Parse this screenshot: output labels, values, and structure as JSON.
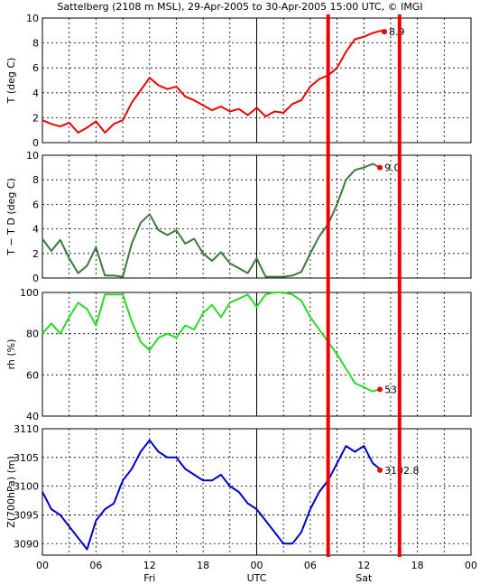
{
  "chart_data": {
    "type": "line",
    "title": "Sattelberg (2108 m MSL), 29-Apr-2005 to 30-Apr-2005 15:00 UTC, © IMGI",
    "x_axis": {
      "range_hours": [
        0,
        48
      ],
      "ticks": [
        {
          "hour": 0,
          "label": "00"
        },
        {
          "hour": 6,
          "label": "06"
        },
        {
          "hour": 12,
          "label": "12"
        },
        {
          "hour": 18,
          "label": "18"
        },
        {
          "hour": 24,
          "label": "00"
        },
        {
          "hour": 30,
          "label": "06"
        },
        {
          "hour": 36,
          "label": "12"
        },
        {
          "hour": 42,
          "label": "18"
        },
        {
          "hour": 48,
          "label": "00"
        }
      ],
      "day_labels": [
        {
          "hour": 12,
          "label": "Fri"
        },
        {
          "hour": 24,
          "label": "UTC"
        },
        {
          "hour": 36,
          "label": "Sat"
        }
      ]
    },
    "markers": [
      {
        "hour": 32,
        "color": "#ee0000"
      },
      {
        "hour": 40,
        "color": "#ee0000"
      }
    ],
    "grid": true,
    "panels": [
      {
        "id": "temperature",
        "ylabel": "T (deg C)",
        "ylim": [
          0,
          10
        ],
        "yticks": [
          {
            "value": 0,
            "label": "0"
          },
          {
            "value": 2,
            "label": "2"
          },
          {
            "value": 4,
            "label": "4"
          },
          {
            "value": 6,
            "label": "6"
          },
          {
            "value": 8,
            "label": "8"
          },
          {
            "value": 10,
            "label": "10"
          }
        ],
        "color": "#ee0000",
        "points": [
          [
            0,
            1.8
          ],
          [
            1,
            1.5
          ],
          [
            2,
            1.3
          ],
          [
            3,
            1.6
          ],
          [
            4,
            0.8
          ],
          [
            5,
            1.2
          ],
          [
            6,
            1.7
          ],
          [
            7,
            0.8
          ],
          [
            8,
            1.5
          ],
          [
            9,
            1.8
          ],
          [
            10,
            3.2
          ],
          [
            11,
            4.2
          ],
          [
            12,
            5.2
          ],
          [
            13,
            4.6
          ],
          [
            14,
            4.3
          ],
          [
            15,
            4.5
          ],
          [
            16,
            3.7
          ],
          [
            17,
            3.4
          ],
          [
            18,
            3.0
          ],
          [
            19,
            2.6
          ],
          [
            20,
            2.9
          ],
          [
            21,
            2.5
          ],
          [
            22,
            2.7
          ],
          [
            23,
            2.2
          ],
          [
            24,
            2.8
          ],
          [
            25,
            2.1
          ],
          [
            26,
            2.5
          ],
          [
            27,
            2.4
          ],
          [
            28,
            3.1
          ],
          [
            29,
            3.4
          ],
          [
            30,
            4.5
          ],
          [
            31,
            5.1
          ],
          [
            32,
            5.4
          ],
          [
            33,
            6.0
          ],
          [
            34,
            7.3
          ],
          [
            35,
            8.3
          ],
          [
            36,
            8.5
          ],
          [
            37,
            8.8
          ],
          [
            38,
            9.0
          ],
          [
            38.3,
            8.9
          ]
        ],
        "end_value": 8.9,
        "end_label": "8.9"
      },
      {
        "id": "dewpoint-depression",
        "ylabel": "T − T D (deg C)",
        "ylim": [
          0,
          10
        ],
        "yticks": [
          {
            "value": 0,
            "label": "0"
          },
          {
            "value": 2,
            "label": "2"
          },
          {
            "value": 4,
            "label": "4"
          },
          {
            "value": 6,
            "label": "6"
          },
          {
            "value": 8,
            "label": "8"
          },
          {
            "value": 10,
            "label": "10"
          }
        ],
        "color": "#3a7a3a",
        "points": [
          [
            0,
            3.2
          ],
          [
            1,
            2.2
          ],
          [
            2,
            3.1
          ],
          [
            3,
            1.6
          ],
          [
            4,
            0.4
          ],
          [
            5,
            1.0
          ],
          [
            6,
            2.5
          ],
          [
            7,
            0.2
          ],
          [
            8,
            0.2
          ],
          [
            9,
            0.1
          ],
          [
            10,
            2.8
          ],
          [
            11,
            4.5
          ],
          [
            12,
            5.2
          ],
          [
            13,
            3.9
          ],
          [
            14,
            3.5
          ],
          [
            15,
            3.9
          ],
          [
            16,
            2.8
          ],
          [
            17,
            3.2
          ],
          [
            18,
            2.0
          ],
          [
            19,
            1.4
          ],
          [
            20,
            2.1
          ],
          [
            21,
            1.2
          ],
          [
            22,
            0.8
          ],
          [
            23,
            0.4
          ],
          [
            24,
            1.6
          ],
          [
            25,
            0.1
          ],
          [
            26,
            0.1
          ],
          [
            27,
            0.1
          ],
          [
            28,
            0.2
          ],
          [
            29,
            0.5
          ],
          [
            30,
            2.0
          ],
          [
            31,
            3.4
          ],
          [
            32,
            4.4
          ],
          [
            33,
            6.0
          ],
          [
            34,
            8.0
          ],
          [
            35,
            8.8
          ],
          [
            36,
            9.0
          ],
          [
            37,
            9.3
          ],
          [
            37.8,
            9.0
          ]
        ],
        "end_value": 9.0,
        "end_label": "9.0"
      },
      {
        "id": "relative-humidity",
        "ylabel": "rh (%)",
        "ylim": [
          40,
          100
        ],
        "yticks": [
          {
            "value": 40,
            "label": "40"
          },
          {
            "value": 60,
            "label": "60"
          },
          {
            "value": 80,
            "label": "80"
          },
          {
            "value": 100,
            "label": "100"
          }
        ],
        "color": "#22dd22",
        "points": [
          [
            0,
            80
          ],
          [
            1,
            85
          ],
          [
            2,
            80
          ],
          [
            3,
            88
          ],
          [
            4,
            95
          ],
          [
            5,
            92
          ],
          [
            6,
            84
          ],
          [
            7,
            99
          ],
          [
            8,
            99
          ],
          [
            9,
            99
          ],
          [
            10,
            86
          ],
          [
            11,
            76
          ],
          [
            12,
            72
          ],
          [
            13,
            78
          ],
          [
            14,
            80
          ],
          [
            15,
            78
          ],
          [
            16,
            84
          ],
          [
            17,
            82
          ],
          [
            18,
            90
          ],
          [
            19,
            94
          ],
          [
            20,
            88
          ],
          [
            21,
            95
          ],
          [
            22,
            97
          ],
          [
            23,
            99
          ],
          [
            24,
            93
          ],
          [
            25,
            99
          ],
          [
            26,
            100
          ],
          [
            27,
            100
          ],
          [
            28,
            99
          ],
          [
            29,
            96
          ],
          [
            30,
            88
          ],
          [
            31,
            82
          ],
          [
            32,
            76
          ],
          [
            33,
            70
          ],
          [
            34,
            63
          ],
          [
            35,
            56
          ],
          [
            36,
            54
          ],
          [
            37,
            52
          ],
          [
            37.8,
            53
          ]
        ],
        "end_value": 53,
        "end_label": "53"
      },
      {
        "id": "geopotential-700hpa",
        "ylabel": "Z(700hPa) (m)",
        "ylim": [
          3088,
          3110
        ],
        "yticks": [
          {
            "value": 3090,
            "label": "3090"
          },
          {
            "value": 3095,
            "label": "3095"
          },
          {
            "value": 3100,
            "label": "3100"
          },
          {
            "value": 3105,
            "label": "3105"
          },
          {
            "value": 3110,
            "label": "3110"
          }
        ],
        "color": "#0000cc",
        "points": [
          [
            0,
            3099
          ],
          [
            1,
            3096
          ],
          [
            2,
            3095
          ],
          [
            3,
            3093
          ],
          [
            4,
            3091
          ],
          [
            5,
            3089
          ],
          [
            6,
            3094
          ],
          [
            7,
            3096
          ],
          [
            8,
            3097
          ],
          [
            9,
            3101
          ],
          [
            10,
            3103
          ],
          [
            11,
            3106
          ],
          [
            12,
            3108
          ],
          [
            13,
            3106
          ],
          [
            14,
            3105
          ],
          [
            15,
            3105
          ],
          [
            16,
            3103
          ],
          [
            17,
            3102
          ],
          [
            18,
            3101
          ],
          [
            19,
            3101
          ],
          [
            20,
            3102
          ],
          [
            21,
            3100
          ],
          [
            22,
            3099
          ],
          [
            23,
            3097
          ],
          [
            24,
            3096
          ],
          [
            25,
            3094
          ],
          [
            26,
            3092
          ],
          [
            27,
            3090
          ],
          [
            28,
            3090
          ],
          [
            29,
            3092
          ],
          [
            30,
            3096
          ],
          [
            31,
            3099
          ],
          [
            32,
            3101
          ],
          [
            33,
            3104
          ],
          [
            34,
            3107
          ],
          [
            35,
            3106
          ],
          [
            36,
            3107
          ],
          [
            37,
            3104
          ],
          [
            37.8,
            3103
          ]
        ],
        "end_value": 3102.8,
        "end_label": "3102.8"
      }
    ]
  }
}
